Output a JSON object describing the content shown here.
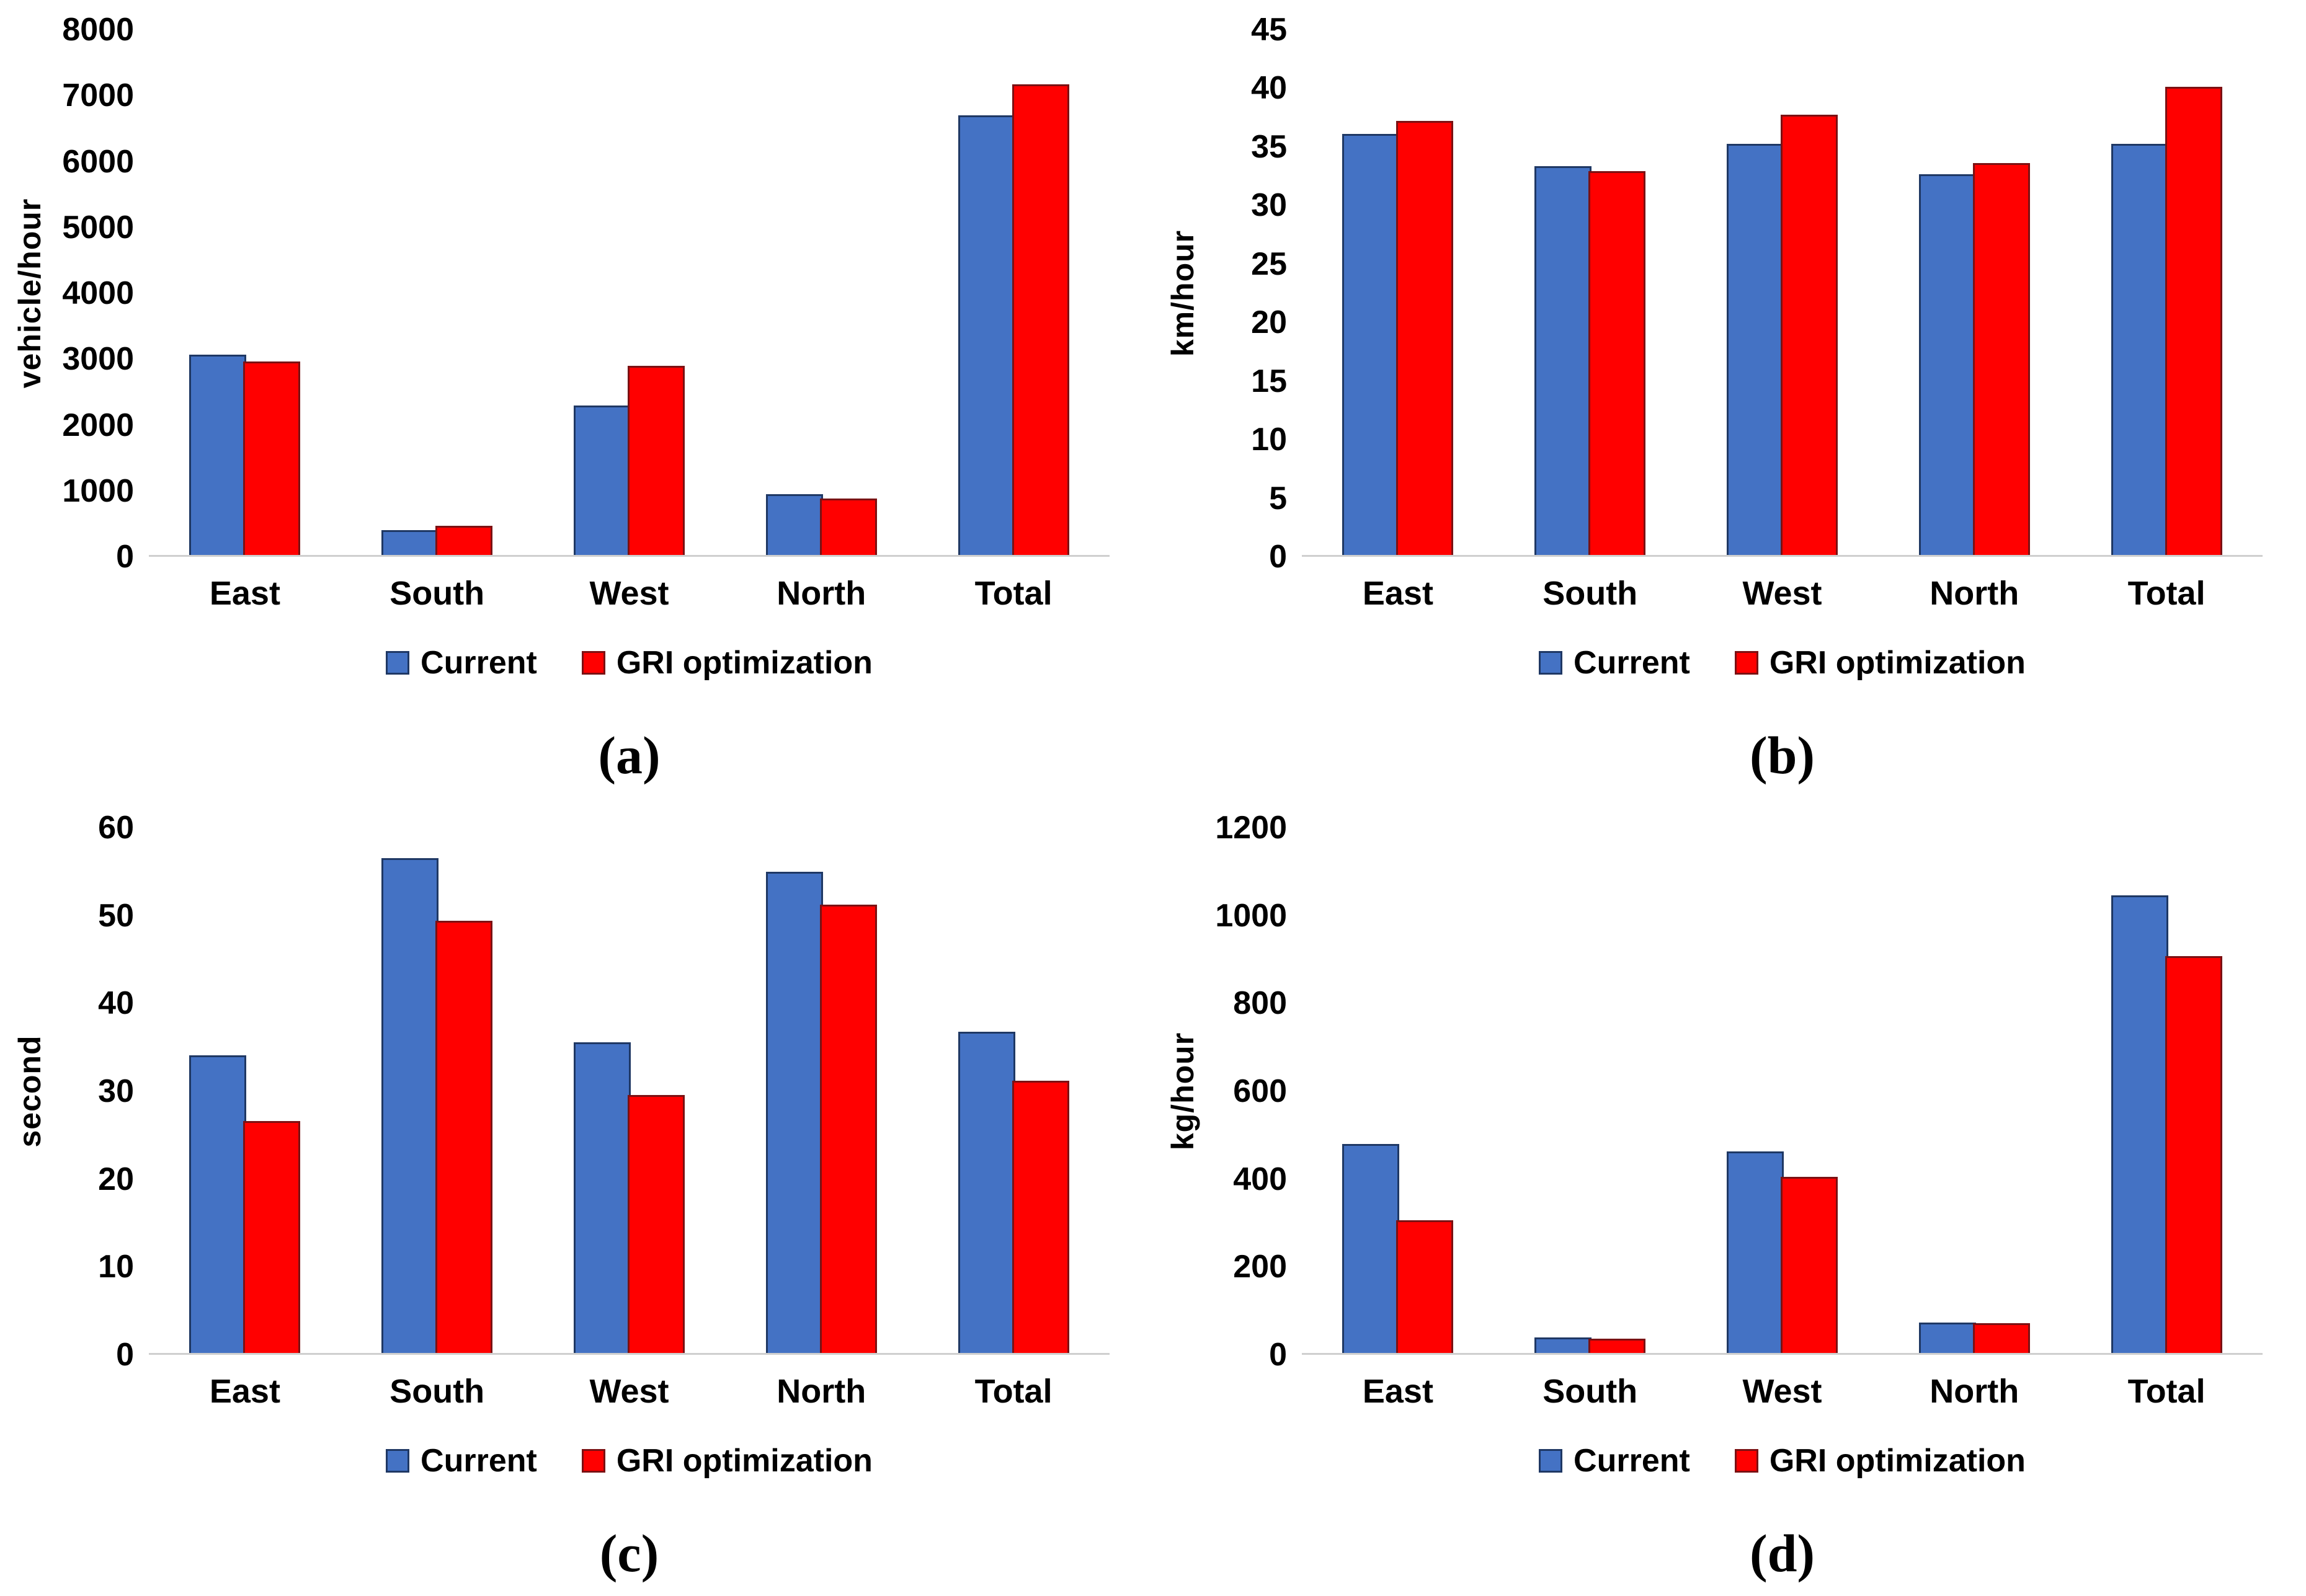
{
  "colors": {
    "bar_blue": "#4472C4",
    "bar_blue_border": "#1F3864",
    "bar_red": "#FF0000",
    "bar_red_border": "#7B1113",
    "axis_line": "#CFCFCF",
    "text": "#000000"
  },
  "chart_data": [
    {
      "type": "bar",
      "id": "a",
      "caption": "(a)",
      "ylabel": "vehicle/hour",
      "ylim": [
        0,
        8000
      ],
      "yticks": [
        8000,
        7000,
        6000,
        5000,
        4000,
        3000,
        2000,
        1000,
        0
      ],
      "categories": [
        "East",
        "South",
        "West",
        "North",
        "Total"
      ],
      "grid": false,
      "legend_position": "bottom",
      "series": [
        {
          "name": "Current",
          "color": "#4472C4",
          "border_color": "#1F3864",
          "values": [
            3050,
            375,
            2280,
            930,
            6700
          ]
        },
        {
          "name": "GRI optimization",
          "color": "#FF0000",
          "border_color": "#7B1113",
          "values": [
            2950,
            440,
            2880,
            855,
            7170
          ]
        }
      ]
    },
    {
      "type": "bar",
      "id": "b",
      "caption": "(b)",
      "ylabel": "km/hour",
      "ylim": [
        0,
        45
      ],
      "yticks": [
        45,
        40,
        35,
        30,
        25,
        20,
        15,
        10,
        5,
        0
      ],
      "categories": [
        "East",
        "South",
        "West",
        "North",
        "Total"
      ],
      "grid": false,
      "legend_position": "bottom",
      "series": [
        {
          "name": "Current",
          "color": "#4472C4",
          "border_color": "#1F3864",
          "values": [
            36.1,
            33.3,
            35.2,
            32.6,
            35.2
          ]
        },
        {
          "name": "GRI optimization",
          "color": "#FF0000",
          "border_color": "#7B1113",
          "values": [
            37.2,
            32.9,
            37.7,
            33.6,
            40.1
          ]
        }
      ]
    },
    {
      "type": "bar",
      "id": "c",
      "caption": "(c)",
      "ylabel": "second",
      "ylim": [
        0,
        60
      ],
      "yticks": [
        60,
        50,
        40,
        30,
        20,
        10,
        0
      ],
      "categories": [
        "East",
        "South",
        "West",
        "North",
        "Total"
      ],
      "grid": false,
      "legend_position": "bottom",
      "series": [
        {
          "name": "Current",
          "color": "#4472C4",
          "border_color": "#1F3864",
          "values": [
            34,
            56.5,
            35.5,
            55,
            36.7
          ]
        },
        {
          "name": "GRI optimization",
          "color": "#FF0000",
          "border_color": "#7B1113",
          "values": [
            26.5,
            49.4,
            29.5,
            51.2,
            31.1
          ]
        }
      ]
    },
    {
      "type": "bar",
      "id": "d",
      "caption": "(d)",
      "ylabel": "kg/hour",
      "ylim": [
        0,
        1200
      ],
      "yticks": [
        1200,
        1000,
        800,
        600,
        400,
        200,
        0
      ],
      "categories": [
        "East",
        "South",
        "West",
        "North",
        "Total"
      ],
      "grid": false,
      "legend_position": "bottom",
      "series": [
        {
          "name": "Current",
          "color": "#4472C4",
          "border_color": "#1F3864",
          "values": [
            478,
            36,
            460,
            70,
            1045
          ]
        },
        {
          "name": "GRI optimization",
          "color": "#FF0000",
          "border_color": "#7B1113",
          "values": [
            303,
            32,
            403,
            68,
            907
          ]
        }
      ]
    }
  ]
}
